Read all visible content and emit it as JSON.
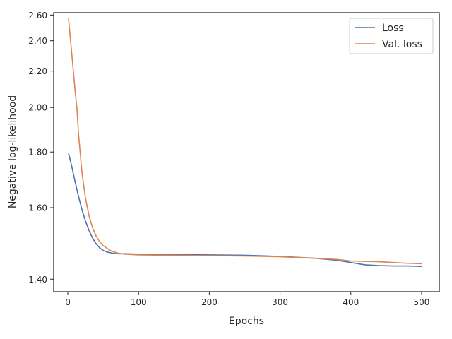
{
  "chart_data": {
    "type": "line",
    "xlabel": "Epochs",
    "ylabel": "Negative log-likelihood",
    "y_scale": "reciprocal",
    "xlim": [
      -20,
      525
    ],
    "ylim": [
      1.37,
      2.62
    ],
    "x_ticks": [
      0,
      100,
      200,
      300,
      400,
      500
    ],
    "x_tick_labels": [
      "0",
      "100",
      "200",
      "300",
      "400",
      "500"
    ],
    "y_ticks": [
      1.4,
      1.6,
      1.8,
      2.0,
      2.2,
      2.4,
      2.6
    ],
    "y_tick_labels": [
      "1.40",
      "1.60",
      "1.80",
      "2.00",
      "2.20",
      "2.40",
      "2.60"
    ],
    "grid": false,
    "legend_position": "top-right",
    "series": [
      {
        "name": "Loss",
        "color": "#4c72b0",
        "x": [
          1,
          5,
          10,
          15,
          20,
          25,
          30,
          35,
          40,
          45,
          50,
          55,
          60,
          65,
          70,
          80,
          100,
          150,
          200,
          250,
          300,
          350,
          380,
          400,
          420,
          440,
          460,
          480,
          500
        ],
        "y": [
          1.795,
          1.75,
          1.69,
          1.638,
          1.593,
          1.558,
          1.53,
          1.508,
          1.492,
          1.481,
          1.474,
          1.47,
          1.468,
          1.466,
          1.465,
          1.465,
          1.464,
          1.463,
          1.462,
          1.461,
          1.458,
          1.453,
          1.448,
          1.442,
          1.436,
          1.434,
          1.433,
          1.433,
          1.432
        ]
      },
      {
        "name": "Val. loss",
        "color": "#dd8452",
        "x": [
          1,
          5,
          10,
          13,
          15,
          18,
          20,
          25,
          30,
          35,
          40,
          45,
          50,
          60,
          70,
          80,
          100,
          150,
          200,
          250,
          300,
          350,
          380,
          400,
          420,
          440,
          460,
          480,
          500
        ],
        "y": [
          2.57,
          2.34,
          2.1,
          1.99,
          1.88,
          1.78,
          1.72,
          1.63,
          1.574,
          1.538,
          1.514,
          1.498,
          1.487,
          1.474,
          1.467,
          1.464,
          1.462,
          1.461,
          1.46,
          1.459,
          1.457,
          1.453,
          1.45,
          1.446,
          1.445,
          1.444,
          1.442,
          1.44,
          1.439
        ]
      }
    ]
  }
}
